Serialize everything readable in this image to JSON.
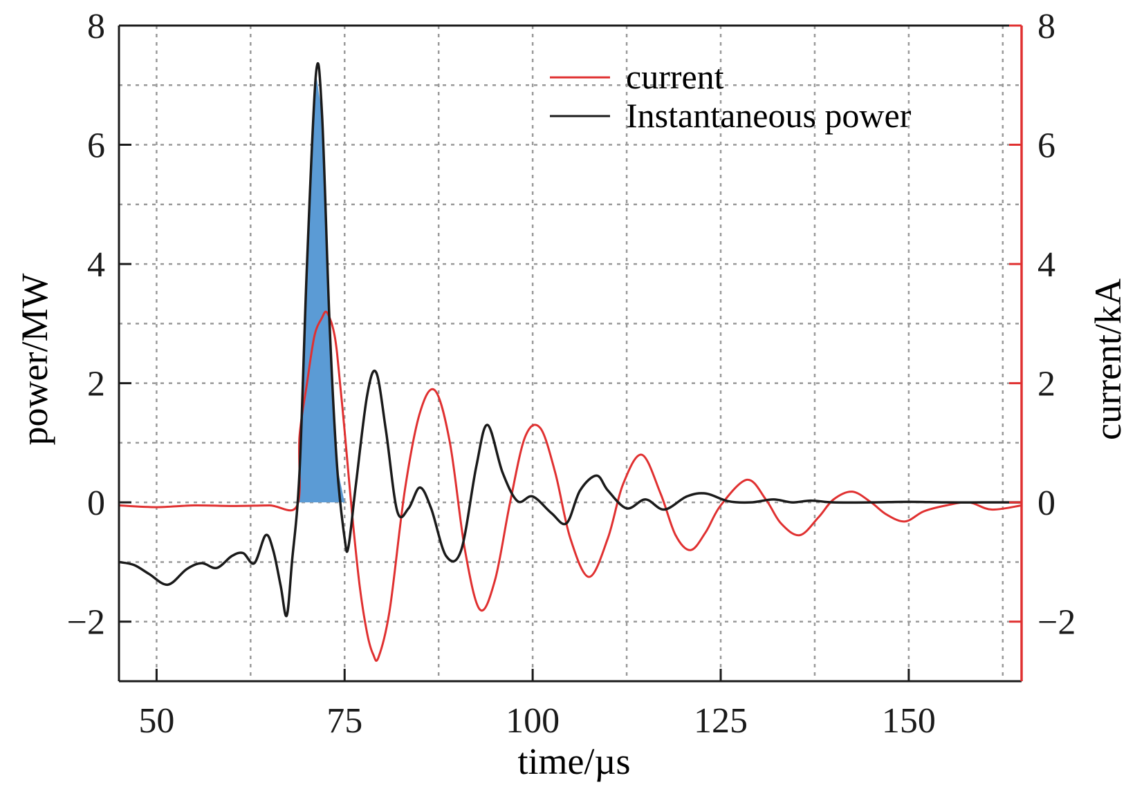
{
  "chart_data": {
    "type": "line",
    "title": "",
    "xlabel": "time/µs",
    "ylabel_left": "power/MW",
    "ylabel_right": "current/kA",
    "xlim": [
      45,
      165
    ],
    "ylim_left": [
      -3,
      8
    ],
    "ylim_right": [
      -3,
      8
    ],
    "x_ticks": [
      50,
      75,
      100,
      125,
      150
    ],
    "x_tick_labels": [
      "50",
      "75",
      "100",
      "125",
      "150"
    ],
    "y_ticks": [
      -2,
      0,
      2,
      4,
      6,
      8
    ],
    "y_tick_labels": [
      "−2",
      "0",
      "2",
      "4",
      "6",
      "8"
    ],
    "grid": true,
    "legend_position": "top-right",
    "colors": {
      "power": "#1a1a1a",
      "current": "#e03030",
      "fill": "#5b9bd5",
      "right_axis": "#e03030",
      "grid": "#999999"
    },
    "series": [
      {
        "name": "current",
        "axis": "right",
        "x": [
          45,
          50,
          55,
          60,
          65,
          68.7,
          69,
          70,
          71,
          72,
          72.5,
          73,
          73.5,
          74,
          75,
          76,
          77,
          78,
          78.8,
          79.5,
          81,
          83,
          85,
          87,
          89,
          91,
          93,
          95,
          97,
          99,
          101,
          103,
          105,
          107.5,
          110,
          112,
          114.5,
          117,
          119,
          121,
          123,
          125,
          128.5,
          131,
          133,
          135.5,
          138,
          140,
          142.5,
          145,
          147,
          149.5,
          152,
          155,
          158,
          161,
          165
        ],
        "values": [
          -0.05,
          -0.08,
          -0.05,
          -0.06,
          -0.05,
          -0.05,
          1.1,
          2.0,
          2.8,
          3.1,
          3.2,
          3.1,
          2.9,
          2.5,
          1.2,
          -0.2,
          -1.4,
          -2.2,
          -2.55,
          -2.6,
          -1.8,
          0.2,
          1.5,
          1.88,
          1.0,
          -0.8,
          -1.8,
          -1.3,
          0.0,
          1.1,
          1.25,
          0.5,
          -0.6,
          -1.25,
          -0.6,
          0.3,
          0.8,
          0.15,
          -0.55,
          -0.8,
          -0.5,
          -0.05,
          0.38,
          0.05,
          -0.35,
          -0.55,
          -0.25,
          0.05,
          0.18,
          0.0,
          -0.2,
          -0.32,
          -0.15,
          -0.05,
          0.0,
          -0.12,
          -0.05
        ]
      },
      {
        "name": "Instantaneous power",
        "axis": "left",
        "x": [
          45,
          47,
          49,
          51.5,
          54,
          56,
          58,
          60,
          61.5,
          63,
          64.5,
          65.5,
          66.5,
          67.3,
          68,
          69,
          70,
          71.2,
          72,
          73,
          74,
          75,
          75.5,
          76.5,
          78,
          79.2,
          80.5,
          82,
          83.5,
          85,
          86.5,
          88.5,
          90.5,
          92.5,
          94,
          96,
          98,
          100,
          102.5,
          104.5,
          106.3,
          108.5,
          110,
          112.5,
          115,
          117.5,
          120.5,
          123,
          126,
          129,
          132,
          134.5,
          137,
          140,
          145,
          150,
          155,
          160,
          165
        ],
        "values": [
          -1.0,
          -1.05,
          -1.2,
          -1.38,
          -1.12,
          -1.02,
          -1.1,
          -0.9,
          -0.85,
          -1.02,
          -0.55,
          -0.8,
          -1.4,
          -1.9,
          -1.0,
          0.5,
          4.0,
          7.2,
          6.5,
          3.0,
          0.6,
          -0.6,
          -0.75,
          0.3,
          1.8,
          2.18,
          1.2,
          -0.15,
          -0.1,
          0.25,
          -0.1,
          -0.9,
          -0.8,
          0.6,
          1.3,
          0.5,
          0.02,
          0.1,
          -0.18,
          -0.35,
          0.2,
          0.45,
          0.2,
          -0.1,
          0.05,
          -0.12,
          0.1,
          0.15,
          0.02,
          0.0,
          0.05,
          0.0,
          0.03,
          0.0,
          0.0,
          0.01,
          0.0,
          0.0,
          0.0
        ]
      }
    ],
    "shaded_region": {
      "x": [
        68.8,
        69,
        70,
        71.2,
        72,
        73,
        74,
        75
      ],
      "values": [
        0,
        0.5,
        4.0,
        7.2,
        6.5,
        3.0,
        0.6,
        0
      ]
    }
  }
}
